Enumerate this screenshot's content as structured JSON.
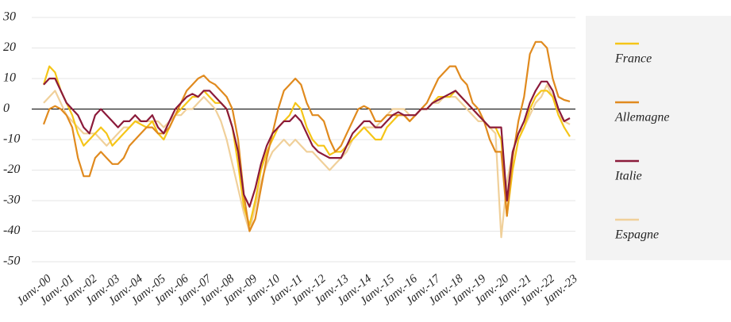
{
  "chart_data": {
    "type": "line",
    "categories": [
      "Janv.-00",
      null,
      null,
      null,
      "Janv.-01",
      null,
      null,
      null,
      "Janv.-02",
      null,
      null,
      null,
      "Janv.-03",
      null,
      null,
      null,
      "Janv.-04",
      null,
      null,
      null,
      "Janv.-05",
      null,
      null,
      null,
      "Janv.-06",
      null,
      null,
      null,
      "Janv.-07",
      null,
      null,
      null,
      "Janv.-08",
      null,
      null,
      null,
      "Janv.-09",
      null,
      null,
      null,
      "Janv.-10",
      null,
      null,
      null,
      "Janv.-11",
      null,
      null,
      null,
      "Janv.-12",
      null,
      null,
      null,
      "Janv.-13",
      null,
      null,
      null,
      "Janv.-14",
      null,
      null,
      null,
      "Janv.-15",
      null,
      null,
      null,
      "Janv.-16",
      null,
      null,
      null,
      "Janv.-17",
      null,
      null,
      null,
      "Janv.-18",
      null,
      null,
      null,
      "Janv.-19",
      null,
      null,
      null,
      "Janv.-20",
      null,
      null,
      null,
      "Janv.-21",
      null,
      null,
      null,
      "Janv.-22",
      null,
      null,
      null,
      "Janv.-23"
    ],
    "series": [
      {
        "name": "France",
        "color": "#f5c518",
        "values": [
          8,
          14,
          12,
          6,
          2,
          -2,
          -8,
          -12,
          -10,
          -8,
          -6,
          -8,
          -12,
          -10,
          -8,
          -6,
          -4,
          -5,
          -6,
          -4,
          -8,
          -10,
          -6,
          -2,
          0,
          2,
          4,
          4,
          6,
          4,
          2,
          2,
          0,
          -6,
          -18,
          -32,
          -38,
          -30,
          -20,
          -14,
          -10,
          -6,
          -4,
          -2,
          2,
          0,
          -6,
          -10,
          -12,
          -12,
          -15,
          -14,
          -14,
          -12,
          -10,
          -8,
          -6,
          -8,
          -10,
          -10,
          -6,
          -4,
          -2,
          -2,
          -4,
          -2,
          0,
          0,
          2,
          4,
          4,
          4,
          6,
          4,
          2,
          0,
          -2,
          -4,
          -6,
          -6,
          -10,
          -35,
          -20,
          -10,
          -6,
          0,
          4,
          6,
          6,
          4,
          -2,
          -6,
          -9
        ]
      },
      {
        "name": "Allemagne",
        "color": "#e08a1e",
        "values": [
          -5,
          0,
          1,
          0,
          -2,
          -6,
          -16,
          -22,
          -22,
          -16,
          -14,
          -16,
          -18,
          -18,
          -16,
          -12,
          -10,
          -8,
          -6,
          -6,
          -8,
          -8,
          -6,
          -2,
          2,
          6,
          8,
          10,
          11,
          9,
          8,
          6,
          4,
          0,
          -10,
          -28,
          -40,
          -36,
          -26,
          -16,
          -8,
          0,
          6,
          8,
          10,
          8,
          2,
          -2,
          -2,
          -4,
          -10,
          -14,
          -12,
          -8,
          -4,
          0,
          1,
          0,
          -4,
          -4,
          -2,
          -2,
          -2,
          -2,
          -4,
          -2,
          0,
          2,
          6,
          10,
          12,
          14,
          14,
          10,
          8,
          2,
          0,
          -4,
          -10,
          -14,
          -14,
          -35,
          -16,
          -4,
          4,
          18,
          22,
          22,
          20,
          10,
          4,
          3,
          2.5
        ]
      },
      {
        "name": "Italie",
        "color": "#8b1a3a",
        "values": [
          8,
          10,
          10,
          6,
          2,
          0,
          -2,
          -6,
          -8,
          -2,
          0,
          -2,
          -4,
          -6,
          -4,
          -4,
          -2,
          -4,
          -4,
          -2,
          -6,
          -8,
          -4,
          0,
          2,
          4,
          5,
          4,
          6,
          6,
          4,
          2,
          0,
          -6,
          -14,
          -28,
          -32,
          -26,
          -18,
          -12,
          -8,
          -6,
          -4,
          -4,
          -2,
          -4,
          -8,
          -12,
          -14,
          -15,
          -16,
          -16,
          -16,
          -12,
          -8,
          -6,
          -4,
          -4,
          -6,
          -6,
          -4,
          -2,
          -1,
          -2,
          -2,
          -2,
          0,
          0,
          2,
          3,
          4,
          5,
          6,
          4,
          2,
          0,
          -2,
          -4,
          -6,
          -6,
          -6,
          -30,
          -14,
          -8,
          -4,
          2,
          6,
          9,
          9,
          6,
          0,
          -4,
          -3
        ]
      },
      {
        "name": "Espagne",
        "color": "#f0d09a",
        "values": [
          2,
          4,
          6,
          2,
          -2,
          -4,
          -6,
          -8,
          -8,
          -8,
          -10,
          -12,
          -10,
          -8,
          -6,
          -6,
          -4,
          -4,
          -4,
          -4,
          -4,
          -6,
          -4,
          -2,
          -2,
          0,
          0,
          2,
          4,
          2,
          0,
          -4,
          -10,
          -18,
          -26,
          -34,
          -40,
          -32,
          -24,
          -18,
          -14,
          -12,
          -10,
          -12,
          -10,
          -12,
          -14,
          -14,
          -16,
          -18,
          -20,
          -18,
          -16,
          -14,
          -10,
          -8,
          -6,
          -6,
          -6,
          -4,
          -2,
          0,
          0,
          0,
          -2,
          -2,
          0,
          0,
          2,
          2,
          4,
          4,
          4,
          2,
          0,
          -2,
          -4,
          -4,
          -6,
          -8,
          -42,
          -24,
          -14,
          -8,
          -6,
          -2,
          2,
          4,
          8,
          4,
          -2,
          -4,
          -5
        ]
      }
    ],
    "ylim": [
      -50,
      30
    ],
    "yticks": [
      30,
      20,
      10,
      0,
      -10,
      -20,
      -30,
      -40,
      -50
    ],
    "grid": true
  }
}
